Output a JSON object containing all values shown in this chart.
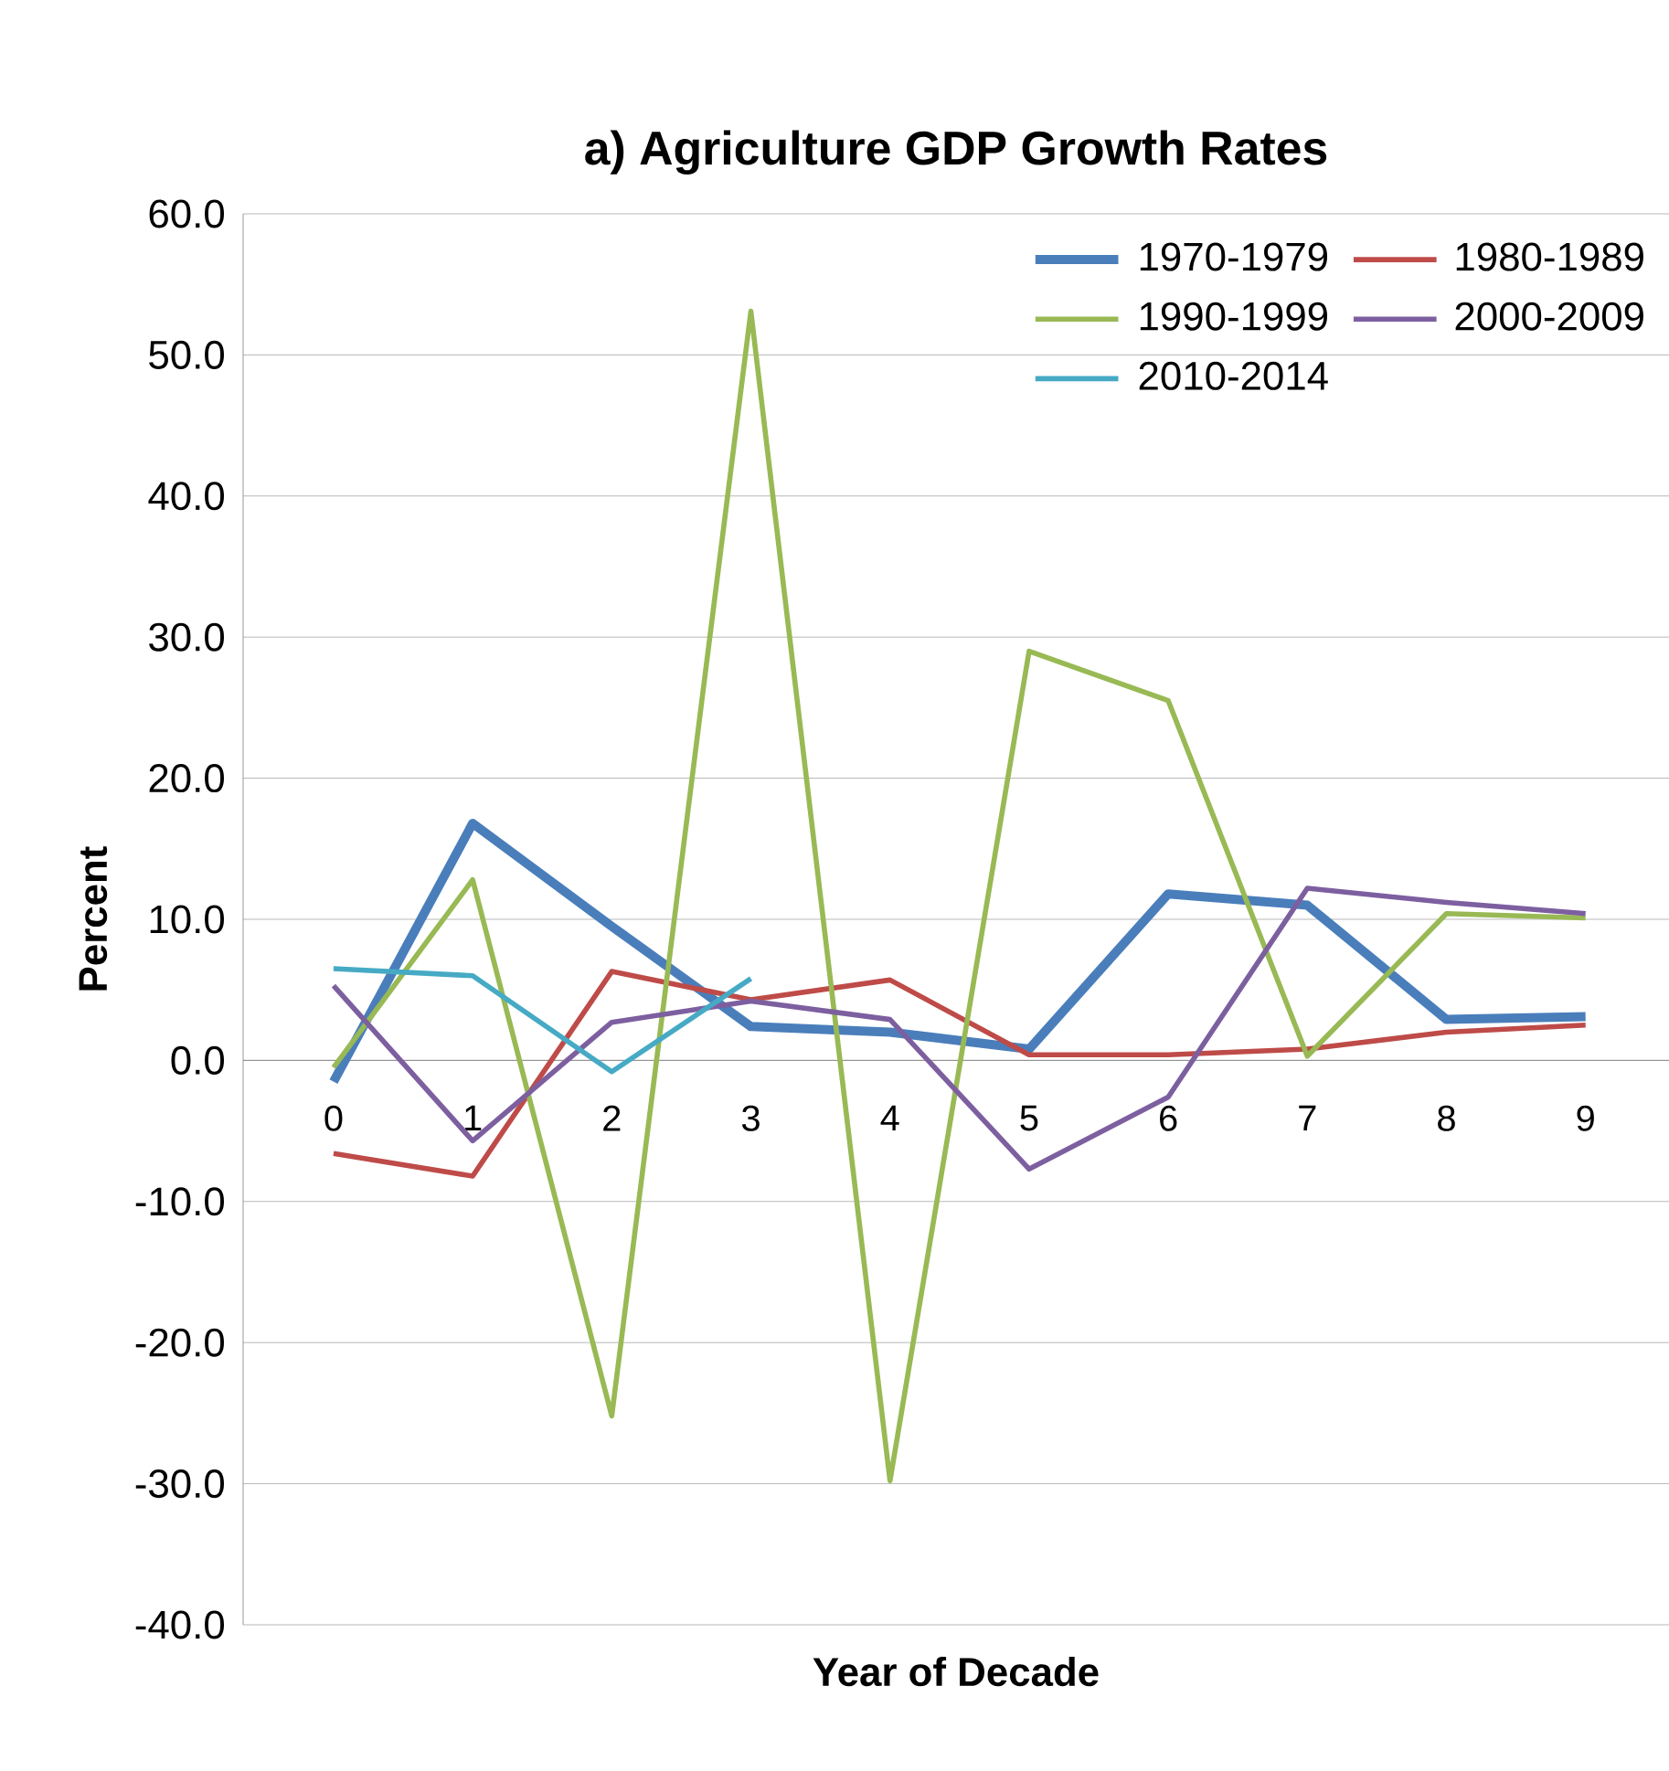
{
  "chart_data": {
    "type": "line",
    "title": "a) Agriculture GDP Growth Rates",
    "xlabel": "Year of Decade",
    "ylabel": "Percent",
    "categories": [
      "0",
      "1",
      "2",
      "3",
      "4",
      "5",
      "6",
      "7",
      "8",
      "9"
    ],
    "series": [
      {
        "name": "1970-1979",
        "color": "#4a7ebb",
        "values": [
          -1.5,
          16.8,
          9.5,
          2.4,
          2.0,
          0.8,
          11.8,
          11.0,
          2.9,
          3.1
        ]
      },
      {
        "name": "1980-1989",
        "color": "#be4b48",
        "values": [
          -6.6,
          -8.2,
          6.3,
          4.3,
          5.7,
          0.4,
          0.4,
          0.8,
          2.0,
          2.5
        ]
      },
      {
        "name": "1990-1999",
        "color": "#98b954",
        "values": [
          -0.5,
          12.8,
          -25.2,
          53.1,
          -29.8,
          29.0,
          25.5,
          0.3,
          10.4,
          10.1
        ]
      },
      {
        "name": "2000-2009",
        "color": "#7d5fa0",
        "values": [
          5.3,
          -5.7,
          2.7,
          4.2,
          2.9,
          -7.7,
          -2.6,
          12.2,
          11.2,
          10.4
        ]
      },
      {
        "name": "2010-2014",
        "color": "#46aac5",
        "values": [
          6.5,
          6.0,
          -0.8,
          5.8,
          null,
          null,
          null,
          null,
          null,
          null
        ]
      }
    ],
    "ylim": [
      -40,
      60
    ],
    "yticks": [
      {
        "value": -40,
        "label": "-40.0"
      },
      {
        "value": -30,
        "label": "-30.0"
      },
      {
        "value": -20,
        "label": "-20.0"
      },
      {
        "value": -10,
        "label": "-10.0"
      },
      {
        "value": 0,
        "label": "0.0"
      },
      {
        "value": 10,
        "label": "10.0"
      },
      {
        "value": 20,
        "label": "20.0"
      },
      {
        "value": 30,
        "label": "30.0"
      },
      {
        "value": 40,
        "label": "40.0"
      },
      {
        "value": 50,
        "label": "50.0"
      },
      {
        "value": 60,
        "label": "60.0"
      }
    ],
    "grid": "y",
    "legend": "top right",
    "marker": "none",
    "line_style": "solid"
  }
}
